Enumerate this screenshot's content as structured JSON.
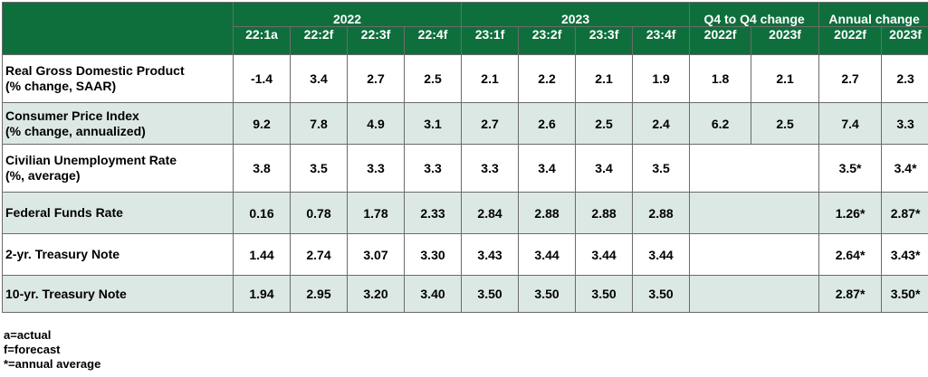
{
  "header": {
    "groups": [
      "2022",
      "2023",
      "Q4 to Q4 change",
      "Annual change"
    ],
    "columns": [
      "22:1a",
      "22:2f",
      "22:3f",
      "22:4f",
      "23:1f",
      "23:2f",
      "23:3f",
      "23:4f",
      "2022f",
      "2023f",
      "2022f",
      "2023f"
    ]
  },
  "rows": [
    {
      "label1": "Real Gross Domestic Product",
      "label2": "(% change, SAAR)",
      "values": [
        "-1.4",
        "3.4",
        "2.7",
        "2.5",
        "2.1",
        "2.2",
        "2.1",
        "1.9",
        "1.8",
        "2.1",
        "2.7",
        "2.3"
      ]
    },
    {
      "label1": "Consumer Price Index",
      "label2": "(% change, annualized)",
      "values": [
        "9.2",
        "7.8",
        "4.9",
        "3.1",
        "2.7",
        "2.6",
        "2.5",
        "2.4",
        "6.2",
        "2.5",
        "7.4",
        "3.3"
      ]
    },
    {
      "label1": "Civilian Unemployment Rate",
      "label2": "(%, average)",
      "values": [
        "3.8",
        "3.5",
        "3.3",
        "3.3",
        "3.3",
        "3.4",
        "3.4",
        "3.5",
        "",
        "",
        "3.5*",
        "3.4*"
      ]
    },
    {
      "label1": "Federal Funds Rate",
      "label2": "",
      "values": [
        "0.16",
        "0.78",
        "1.78",
        "2.33",
        "2.84",
        "2.88",
        "2.88",
        "2.88",
        "",
        "",
        "1.26*",
        "2.87*"
      ]
    },
    {
      "label1": "2-yr. Treasury Note",
      "label2": "",
      "values": [
        "1.44",
        "2.74",
        "3.07",
        "3.30",
        "3.43",
        "3.44",
        "3.44",
        "3.44",
        "",
        "",
        "2.64*",
        "3.43*"
      ]
    },
    {
      "label1": "10-yr. Treasury Note",
      "label2": "",
      "values": [
        "1.94",
        "2.95",
        "3.20",
        "3.40",
        "3.50",
        "3.50",
        "3.50",
        "3.50",
        "",
        "",
        "2.87*",
        "3.50*"
      ]
    }
  ],
  "notes": [
    "a=actual",
    "f=forecast",
    "*=annual average"
  ],
  "colors": {
    "header_bg": "#0f6f3c",
    "header_text": "#ffffff",
    "shade": "#dce8e4"
  }
}
